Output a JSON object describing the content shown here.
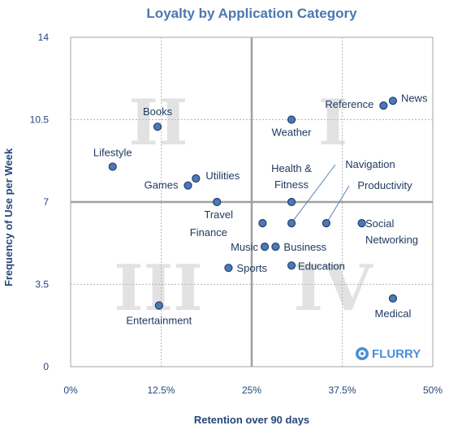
{
  "chart_data": {
    "type": "scatter",
    "title": "Loyalty by Application Category",
    "xlabel": "Retention over 90 days",
    "ylabel": "Frequency of Use per Week",
    "xlim": [
      0,
      50
    ],
    "ylim": [
      0,
      14
    ],
    "x_ticks": [
      "0%",
      "12.5%",
      "25%",
      "37.5%",
      "50%"
    ],
    "y_ticks": [
      "0",
      "3.5",
      "7",
      "10.5",
      "14"
    ],
    "grid": "dashed, with solid quadrant dividers at x=25% and y=7",
    "quadrants": [
      "I",
      "II",
      "III",
      "IV"
    ],
    "points": [
      {
        "label": "News",
        "x": 44.5,
        "y": 11.3
      },
      {
        "label": "Reference",
        "x": 43.2,
        "y": 11.1
      },
      {
        "label": "Weather",
        "x": 30.5,
        "y": 10.5
      },
      {
        "label": "Books",
        "x": 12.0,
        "y": 10.2
      },
      {
        "label": "Lifestyle",
        "x": 5.8,
        "y": 8.5
      },
      {
        "label": "Utilities",
        "x": 17.3,
        "y": 8.0
      },
      {
        "label": "Games",
        "x": 16.2,
        "y": 7.7
      },
      {
        "label": "Travel",
        "x": 20.2,
        "y": 7.0
      },
      {
        "label": "Health & Fitness",
        "x": 30.5,
        "y": 7.0
      },
      {
        "label": "Finance",
        "x": 26.5,
        "y": 6.1
      },
      {
        "label": "Navigation",
        "x": 30.5,
        "y": 6.1
      },
      {
        "label": "Productivity",
        "x": 35.3,
        "y": 6.1
      },
      {
        "label": "Social Networking",
        "x": 40.2,
        "y": 6.1
      },
      {
        "label": "Music",
        "x": 26.8,
        "y": 5.1
      },
      {
        "label": "Business",
        "x": 28.3,
        "y": 5.1
      },
      {
        "label": "Education",
        "x": 30.5,
        "y": 4.3
      },
      {
        "label": "Sports",
        "x": 21.8,
        "y": 4.2
      },
      {
        "label": "Medical",
        "x": 44.5,
        "y": 2.9
      },
      {
        "label": "Entertainment",
        "x": 12.2,
        "y": 2.6
      }
    ]
  },
  "logo": {
    "text": "FLURRY",
    "icon": "flurry-swirl-icon"
  },
  "colors": {
    "title": "#4a78b0",
    "point_fill": "#4e79b4",
    "point_stroke": "#1f3f72",
    "axis_text": "#24467a"
  }
}
